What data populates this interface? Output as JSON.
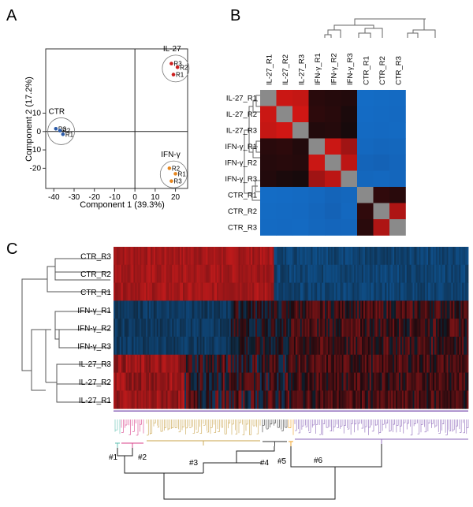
{
  "panels": {
    "a": "A",
    "b": "B",
    "c": "C"
  },
  "pca": {
    "xlabel": "Component 1 (39.3%)",
    "ylabel": "Component 2 (17.2%)",
    "xticks": [
      -40,
      -30,
      -20,
      -10,
      0,
      10,
      20
    ],
    "yticks": [
      10,
      0,
      -10,
      -20
    ],
    "groups": [
      {
        "name": "CTR",
        "color": "#2a5aa8",
        "points": [
          {
            "label": "R3",
            "x": -39,
            "y": 1.5
          },
          {
            "label": "R2",
            "x": -37,
            "y": 0.5
          },
          {
            "label": "R1",
            "x": -35.5,
            "y": -1.5
          }
        ]
      },
      {
        "name": "IL-27",
        "color": "#cc1f1f",
        "points": [
          {
            "label": "R3",
            "x": 18,
            "y": 37
          },
          {
            "label": "R2",
            "x": 21,
            "y": 35
          },
          {
            "label": "R1",
            "x": 19,
            "y": 31
          }
        ]
      },
      {
        "name": "IFN-γ",
        "color": "#e6861f",
        "points": [
          {
            "label": "R2",
            "x": 17,
            "y": -20
          },
          {
            "label": "R1",
            "x": 20,
            "y": -23
          },
          {
            "label": "R3",
            "x": 18,
            "y": -27
          }
        ]
      }
    ]
  },
  "corr": {
    "labels": [
      "IL-27_R1",
      "IL-27_R2",
      "IL-27_R3",
      "IFN-γ_R1",
      "IFN-γ_R2",
      "IFN-γ_R3",
      "CTR_R1",
      "CTR_R2",
      "CTR_R3"
    ],
    "rows": [
      [
        1,
        0.9,
        0.88,
        0.15,
        0.12,
        0.1,
        -0.95,
        -0.92,
        -0.9
      ],
      [
        0.9,
        1,
        0.92,
        0.18,
        0.14,
        0.05,
        -0.93,
        -0.9,
        -0.88
      ],
      [
        0.88,
        0.92,
        1,
        0.1,
        0.12,
        0.02,
        -0.9,
        -0.88,
        -0.9
      ],
      [
        0.15,
        0.18,
        0.1,
        1,
        0.9,
        0.75,
        -0.85,
        -0.8,
        -0.82
      ],
      [
        0.12,
        0.14,
        0.12,
        0.9,
        1,
        0.85,
        -0.75,
        -0.7,
        -0.78
      ],
      [
        0.1,
        0.05,
        0.02,
        0.75,
        0.85,
        1,
        -0.82,
        -0.85,
        -0.8
      ],
      [
        -0.95,
        -0.93,
        -0.9,
        -0.85,
        -0.75,
        -0.82,
        1,
        0.2,
        0.15
      ],
      [
        -0.92,
        -0.9,
        -0.88,
        -0.8,
        -0.7,
        -0.85,
        0.2,
        1,
        0.8
      ],
      [
        -0.9,
        -0.88,
        -0.9,
        -0.82,
        -0.78,
        -0.8,
        0.15,
        0.8,
        1
      ]
    ]
  },
  "heatmap": {
    "rows": [
      "CTR_R3",
      "CTR_R2",
      "CTR_R1",
      "IFN-γ_R1",
      "IFN-γ_R2",
      "IFN-γ_R3",
      "IL-27_R3",
      "IL-27_R2",
      "IL-27_R1"
    ],
    "clusters": [
      {
        "label": "#1",
        "color": "#5fbfb0"
      },
      {
        "label": "#2",
        "color": "#d8408a"
      },
      {
        "label": "#3",
        "color": "#c9a34a"
      },
      {
        "label": "#4",
        "color": "#333333"
      },
      {
        "label": "#5",
        "color": "#f0a020"
      },
      {
        "label": "#6",
        "color": "#8a64b8"
      }
    ]
  }
}
